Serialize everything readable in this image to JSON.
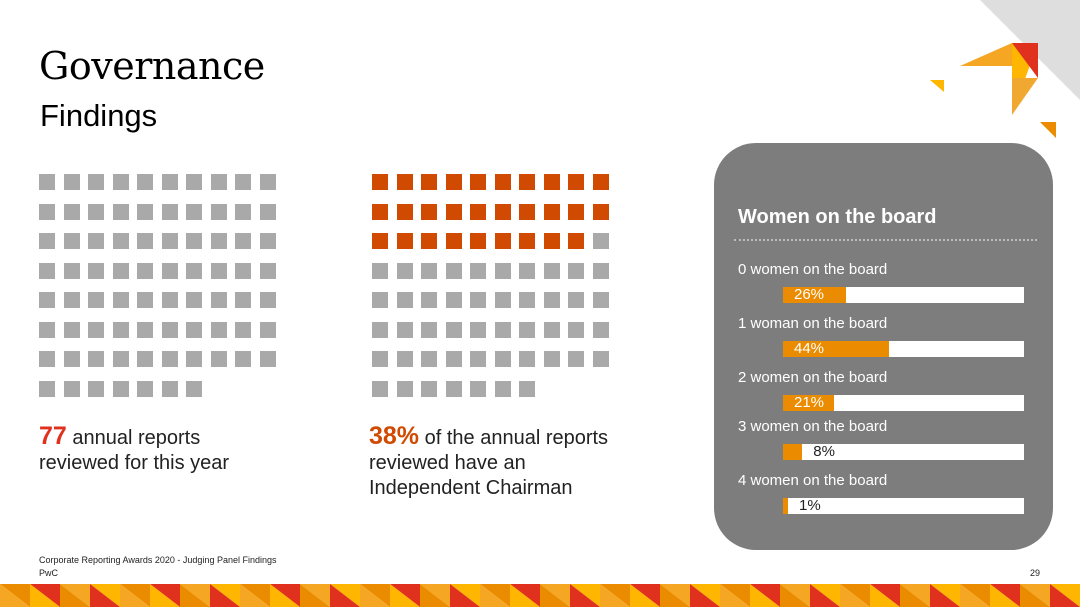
{
  "page": {
    "title": "Governance",
    "subtitle": "Findings",
    "footer_line1": "Corporate Reporting Awards 2020 - Judging Panel Findings",
    "footer_line2": "PwC",
    "page_number": "29"
  },
  "stats": {
    "reports": {
      "number": "77",
      "text_line1": " annual reports",
      "text_line2": "reviewed for this year"
    },
    "chairman": {
      "number": "38%",
      "text_line1": " of the annual reports",
      "text_line2": "reviewed have an",
      "text_line3": "Independent Chairman"
    }
  },
  "colors": {
    "grey_square": "#a9a9a9",
    "orange_square": "#d04a02",
    "bar_fill": "#eb8c00",
    "panel_bg": "#7d7d7d",
    "accent_red": "#e0301e"
  },
  "chart_data": [
    {
      "type": "waffle",
      "total": 77,
      "highlighted": 0,
      "columns": 10
    },
    {
      "type": "waffle",
      "total": 77,
      "highlighted": 29,
      "columns": 10
    },
    {
      "type": "bar",
      "title": "Women on the board",
      "categories": [
        "0 women on the board",
        "1 woman on the board",
        "2 women on the board",
        "3 women on the board",
        "4 women on the board"
      ],
      "values": [
        26,
        44,
        21,
        8,
        1
      ],
      "value_labels": [
        "26%",
        "44%",
        "21%",
        "8%",
        "1%"
      ],
      "xlim": [
        0,
        100
      ]
    }
  ]
}
